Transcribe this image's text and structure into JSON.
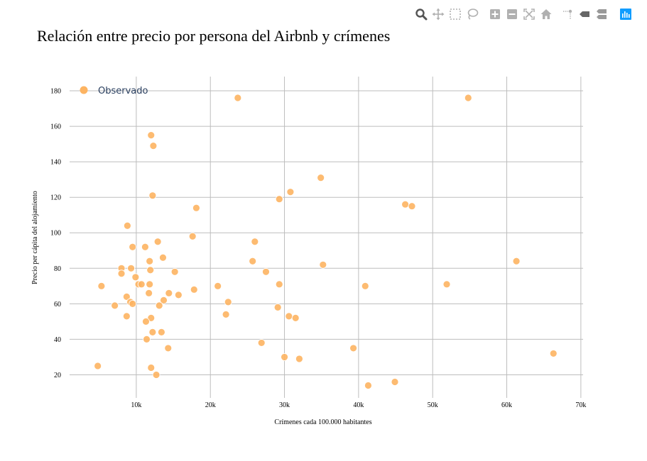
{
  "modebar": {
    "buttons": [
      {
        "name": "zoom-button",
        "icon": "zoom-icon",
        "active": true
      },
      {
        "name": "pan-button",
        "icon": "pan-icon"
      },
      {
        "name": "box-select-button",
        "icon": "box-select-icon"
      },
      {
        "name": "lasso-select-button",
        "icon": "lasso-icon"
      },
      {
        "name": "zoom-in-button",
        "icon": "plus-icon"
      },
      {
        "name": "zoom-out-button",
        "icon": "minus-icon"
      },
      {
        "name": "autoscale-button",
        "icon": "autoscale-icon"
      },
      {
        "name": "reset-axes-button",
        "icon": "home-icon"
      },
      {
        "name": "spike-lines-button",
        "icon": "spike-lines-icon"
      },
      {
        "name": "hover-closest-button",
        "icon": "hover-closest-icon"
      },
      {
        "name": "hover-compare-button",
        "icon": "hover-compare-icon"
      },
      {
        "name": "plotly-logo-button",
        "icon": "plotly-logo-icon"
      }
    ],
    "icon_color": "#7f7f7f",
    "logo_color": "#119dff"
  },
  "chart_data": {
    "type": "scatter",
    "title": "Relación entre precio por persona del Airbnb y crímenes",
    "xlabel": "Crímenes cada 100.000 habitantes",
    "ylabel": "Precio per cápita del alojamiento",
    "xlim": [
      1000,
      70300
    ],
    "ylim": [
      7,
      188
    ],
    "xticks": [
      10000,
      20000,
      30000,
      40000,
      50000,
      60000,
      70000
    ],
    "xtick_labels": [
      "10k",
      "20k",
      "30k",
      "40k",
      "50k",
      "60k",
      "70k"
    ],
    "yticks": [
      20,
      40,
      60,
      80,
      100,
      120,
      140,
      160,
      180
    ],
    "ytick_labels": [
      "20",
      "40",
      "60",
      "80",
      "100",
      "120",
      "140",
      "160",
      "180"
    ],
    "grid": true,
    "legend_position": "top-left",
    "series": [
      {
        "name": "Observado",
        "color": "#fdb462",
        "x": [
          23700,
          54800,
          12000,
          12300,
          34900,
          30800,
          29300,
          12200,
          18100,
          46300,
          47200,
          8800,
          17600,
          12900,
          26000,
          9500,
          11200,
          13600,
          11800,
          25700,
          35200,
          8000,
          9300,
          11900,
          27500,
          15200,
          8000,
          9900,
          10300,
          10700,
          11800,
          29300,
          51900,
          17800,
          21000,
          40900,
          5300,
          14400,
          15700,
          11700,
          8700,
          9200,
          9500,
          13700,
          22400,
          7100,
          13100,
          29100,
          22100,
          30600,
          31500,
          8700,
          12000,
          11300,
          12200,
          13400,
          11400,
          26900,
          14300,
          39300,
          30000,
          32000,
          66300,
          4800,
          12000,
          12700,
          44900,
          41300,
          61300
        ],
        "y": [
          176,
          176,
          155,
          149,
          131,
          123,
          119,
          121,
          114,
          116,
          115,
          104,
          98,
          95,
          95,
          92,
          92,
          86,
          84,
          84,
          82,
          80,
          80,
          79,
          78,
          78,
          77,
          75,
          71,
          71,
          71,
          71,
          71,
          68,
          70,
          70,
          70,
          66,
          65,
          66,
          64,
          61,
          60,
          62,
          61,
          59,
          59,
          58,
          54,
          53,
          52,
          53,
          52,
          50,
          44,
          44,
          40,
          38,
          35,
          35,
          30,
          29,
          32,
          25,
          24,
          20,
          16,
          14,
          84
        ]
      }
    ]
  }
}
